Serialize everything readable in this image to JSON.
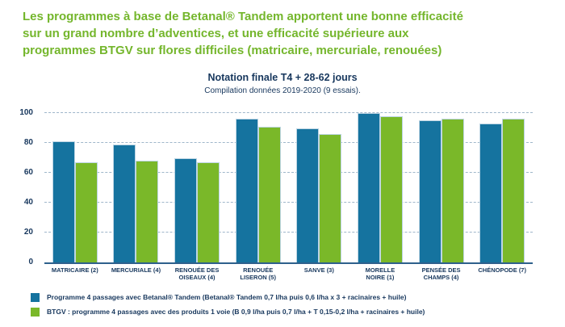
{
  "header": {
    "title": "Les programmes à base de Betanal® Tandem apportent une bonne efficacité sur un grand nombre d’adventices, et une efficacité supérieure aux programmes BTGV sur flores difficiles (matricaire, mercuriale, renouées)",
    "title_lines": [
      "Les programmes à base de Betanal® Tandem apportent une bonne efficacité",
      "sur un grand nombre d’adventices, et une efficacité supérieure aux",
      "programmes BTGV sur flores difficiles (matricaire, mercuriale, renouées)"
    ],
    "title_color": "#74b62c"
  },
  "chart_data": {
    "type": "bar",
    "title": "Notation finale T4 + 28-62 jours",
    "subtitle": "Compilation données 2019-2020 (9 essais).",
    "categories": [
      "MATRICAIRE (2)",
      "MERCURIALE (4)",
      "RENOUÉE DES\nOISEAUX (4)",
      "RENOUÉE\nLISERON (5)",
      "SANVE (3)",
      "MORELLE\nNOIRE (1)",
      "PENSÉE DES\nCHAMPS (4)",
      "CHÉNOPODE (7)"
    ],
    "series": [
      {
        "name": "Programme 4 passages avec Betanal® Tandem (Betanal® Tandem 0,7 l/ha puis 0,6 l/ha x 3 + racinaires + huile)",
        "color": "#15739f",
        "values": [
          81,
          79,
          70,
          96,
          90,
          100,
          95,
          93
        ]
      },
      {
        "name": "BTGV : programme 4 passages avec des produits 1 voie (B 0,9 l/ha puis 0,7 l/ha + T 0,15-0,2 l/ha + racinaires + huile)",
        "color": "#7ab829",
        "values": [
          67,
          68,
          67,
          91,
          86,
          98,
          96,
          96
        ]
      }
    ],
    "ylim": [
      0,
      100
    ],
    "yticks": [
      0,
      20,
      40,
      60,
      80,
      100
    ],
    "grid": "horizontal dashed",
    "legend_position": "bottom",
    "colors": {
      "axis_text": "#17375d",
      "gridline": "#9fb6ca",
      "baseline": "#2e608c"
    }
  }
}
